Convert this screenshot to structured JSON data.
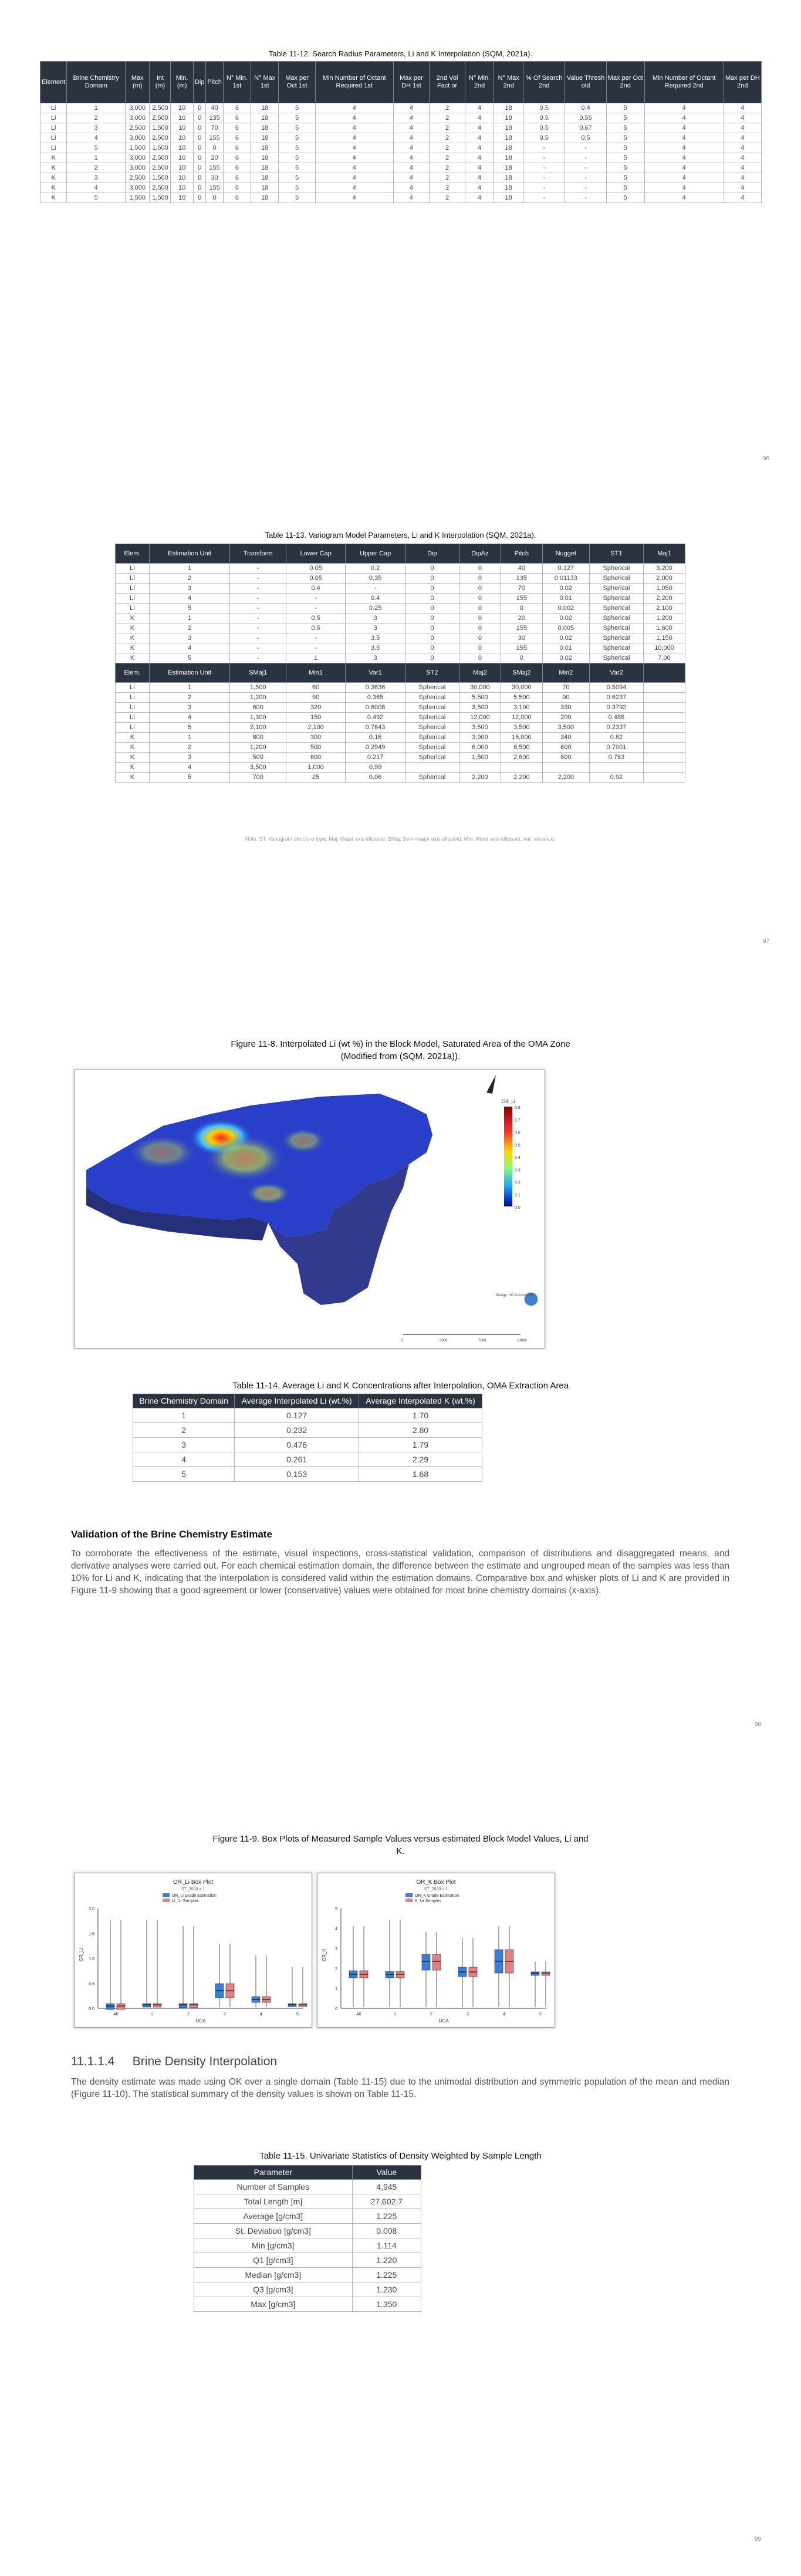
{
  "table12": {
    "caption": "Table 11-12. Search Radius Parameters, Li and K Interpolation (SQM, 2021a).",
    "headers": [
      "Element",
      "Brine Chemistry Domain",
      "Max (m)",
      "Int (m)",
      "Min. (m)",
      "Dip",
      "Pitch",
      "N° Min. 1st",
      "N° Max 1st",
      "Max per Oct 1st",
      "Min Number of Octant Required 1st",
      "Max per DH 1st",
      "2nd Vol Fact or",
      "N° Min. 2nd",
      "N° Max 2nd",
      "% Of Search 2nd",
      "Value Thresh old",
      "Max per Oct 2nd",
      "Min Number of Octant Required 2nd",
      "Max per DH 2nd"
    ],
    "rows": [
      [
        "Li",
        "1",
        "3,000",
        "2,500",
        "10",
        "0",
        "40",
        "6",
        "18",
        "5",
        "4",
        "4",
        "2",
        "4",
        "18",
        "0.5",
        "0.4",
        "5",
        "4",
        "4"
      ],
      [
        "Li",
        "2",
        "3,000",
        "2,500",
        "10",
        "0",
        "135",
        "6",
        "18",
        "5",
        "4",
        "4",
        "2",
        "4",
        "18",
        "0.5",
        "0.55",
        "5",
        "4",
        "4"
      ],
      [
        "Li",
        "3",
        "2,500",
        "1,500",
        "10",
        "0",
        "70",
        "6",
        "18",
        "5",
        "4",
        "4",
        "2",
        "4",
        "18",
        "0.5",
        "0.67",
        "5",
        "4",
        "4"
      ],
      [
        "Li",
        "4",
        "3,000",
        "2,500",
        "10",
        "0",
        "155",
        "6",
        "18",
        "5",
        "4",
        "4",
        "2",
        "4",
        "18",
        "0.5",
        "0.5",
        "5",
        "4",
        "4"
      ],
      [
        "Li",
        "5",
        "1,500",
        "1,500",
        "10",
        "0",
        "0",
        "6",
        "18",
        "5",
        "4",
        "4",
        "2",
        "4",
        "18",
        "-",
        "-",
        "5",
        "4",
        "4"
      ],
      [
        "K",
        "1",
        "3,000",
        "2,500",
        "10",
        "0",
        "20",
        "6",
        "18",
        "5",
        "4",
        "4",
        "2",
        "4",
        "18",
        "-",
        "-",
        "5",
        "4",
        "4"
      ],
      [
        "K",
        "2",
        "3,000",
        "2,500",
        "10",
        "0",
        "155",
        "6",
        "18",
        "5",
        "4",
        "4",
        "2",
        "4",
        "18",
        "-",
        "-",
        "5",
        "4",
        "4"
      ],
      [
        "K",
        "3",
        "2,500",
        "1,500",
        "10",
        "0",
        "30",
        "6",
        "18",
        "5",
        "4",
        "4",
        "2",
        "4",
        "18",
        "-",
        "-",
        "5",
        "4",
        "4"
      ],
      [
        "K",
        "4",
        "3,000",
        "2,500",
        "10",
        "0",
        "155",
        "6",
        "18",
        "5",
        "4",
        "4",
        "2",
        "4",
        "18",
        "-",
        "-",
        "5",
        "4",
        "4"
      ],
      [
        "K",
        "5",
        "1,500",
        "1,500",
        "10",
        "0",
        "0",
        "6",
        "18",
        "5",
        "4",
        "4",
        "2",
        "4",
        "18",
        "-",
        "-",
        "5",
        "4",
        "4"
      ]
    ]
  },
  "page96": "96",
  "table13": {
    "caption": "Table 11-13. Variogram Model Parameters, Li and K Interpolation (SQM, 2021a).",
    "headers1": [
      "Elem.",
      "Estimation Unit",
      "Transform",
      "Lower Cap",
      "Upper Cap",
      "Dip",
      "DipAz",
      "Pitch",
      "Nugget",
      "ST1",
      "Maj1"
    ],
    "rows1": [
      [
        "Li",
        "1",
        "-",
        "0.05",
        "0.2",
        "0",
        "0",
        "40",
        "0.127",
        "Spherical",
        "3,200"
      ],
      [
        "Li",
        "2",
        "-",
        "0.05",
        "0.35",
        "0",
        "0",
        "135",
        "0.01133",
        "Spherical",
        "2,000"
      ],
      [
        "Li",
        "3",
        "-",
        "0.4",
        "-",
        "0",
        "0",
        "70",
        "0.02",
        "Spherical",
        "1,050"
      ],
      [
        "Li",
        "4",
        "-",
        "-",
        "0.4",
        "0",
        "0",
        "155",
        "0.01",
        "Spherical",
        "2,200"
      ],
      [
        "Li",
        "5",
        "-",
        "-",
        "0.25",
        "0",
        "0",
        "0",
        "0.002",
        "Spherical",
        "2,100"
      ],
      [
        "K",
        "1",
        "-",
        "0.5",
        "3",
        "0",
        "0",
        "20",
        "0.02",
        "Spherical",
        "1,200"
      ],
      [
        "K",
        "2",
        "-",
        "0.5",
        "3",
        "0",
        "0",
        "155",
        "0.005",
        "Spherical",
        "1,600"
      ],
      [
        "K",
        "3",
        "-",
        "-",
        "3.5",
        "0",
        "0",
        "30",
        "0.02",
        "Spherical",
        "1,150"
      ],
      [
        "K",
        "4",
        "-",
        "-",
        "3.5",
        "0",
        "0",
        "155",
        "0.01",
        "Spherical",
        "10,000"
      ],
      [
        "K",
        "5",
        "-",
        "1",
        "3",
        "0",
        "0",
        "0",
        "0.02",
        "Spherical",
        "7,00"
      ]
    ],
    "headers2": [
      "Elem.",
      "Estimation Unit",
      "SMaj1",
      "Min1",
      "Var1",
      "ST2",
      "Maj2",
      "SMaj2",
      "Min2",
      "Var2",
      ""
    ],
    "rows2": [
      [
        "Li",
        "1",
        "1,500",
        "60",
        "0.3636",
        "Spherical",
        "30,000",
        "30,000",
        "70",
        "0.5094",
        ""
      ],
      [
        "Li",
        "2",
        "1,200",
        "90",
        "0.365",
        "Spherical",
        "5,500",
        "5,500",
        "90",
        "0.6237",
        ""
      ],
      [
        "Li",
        "3",
        "600",
        "320",
        "0.6008",
        "Spherical",
        "3,500",
        "3,100",
        "330",
        "0.3792",
        ""
      ],
      [
        "Li",
        "4",
        "1,300",
        "150",
        "0.492",
        "Spherical",
        "12,000",
        "12,000",
        "200",
        "0.488",
        ""
      ],
      [
        "Li",
        "5",
        "2,100",
        "2,100",
        "0.7643",
        "Spherical",
        "3,500",
        "3,500",
        "3,500",
        "0.2337",
        ""
      ],
      [
        "K",
        "1",
        "800",
        "300",
        "0.16",
        "Spherical",
        "3,900",
        "15,000",
        "340",
        "0.82",
        ""
      ],
      [
        "K",
        "2",
        "1,200",
        "500",
        "0.2949",
        "Spherical",
        "6,000",
        "8,500",
        "600",
        "0.7001",
        ""
      ],
      [
        "K",
        "3",
        "500",
        "600",
        "0.217",
        "Spherical",
        "1,600",
        "2,600",
        "600",
        "0.763",
        ""
      ],
      [
        "K",
        "4",
        "3,500",
        "1,000",
        "0.99",
        "",
        "",
        "",
        "",
        "",
        ""
      ],
      [
        "K",
        "5",
        "700",
        "25",
        "0.06",
        "Spherical",
        "2,200",
        "2,200",
        "2,200",
        "0.92",
        ""
      ]
    ],
    "note": "Note: ST: Variogram structure type, Maj: Major axis ellipsoid, SMaj: Semi-major axis ellipsoid, Min: Minor axis ellipsoid, Var: variance."
  },
  "page97": "97",
  "figure8": {
    "caption_line1": "Figure 11-8. Interpolated Li (wt %) in the Block Model, Saturated Area of the OMA Zone",
    "caption_line2": "(Modified from (SQM, 2021a)).",
    "legend_title": "OR_Li",
    "legend_values": [
      "0.8",
      "0.7",
      "0.6",
      "0.5",
      "0.4",
      "0.3",
      "0.2",
      "0.1",
      "0.0"
    ],
    "logo_text": "Plunge +00 Azimuth 311",
    "scale_labels": [
      "0",
      "3000",
      "7000",
      "13000"
    ]
  },
  "table14": {
    "caption": "Table 11-14. Average Li and K Concentrations after Interpolation, OMA Extraction Area",
    "headers": [
      "Brine Chemistry Domain",
      "Average Interpolated Li (wt.%)",
      "Average Interpolated K (wt.%)"
    ],
    "rows": [
      [
        "1",
        "0.127",
        "1.70"
      ],
      [
        "2",
        "0.232",
        "2.80"
      ],
      [
        "3",
        "0.476",
        "1.79"
      ],
      [
        "4",
        "0.261",
        "2.29"
      ],
      [
        "5",
        "0.153",
        "1.68"
      ]
    ]
  },
  "validation": {
    "heading": "Validation of the Brine Chemistry Estimate",
    "paragraph": "To corroborate the effectiveness of the estimate, visual inspections, cross-statistical validation, comparison of distributions and disaggregated means, and derivative analyses were carried out. For each chemical estimation domain, the difference between the estimate and ungrouped mean of the samples was less than 10% for Li and K, indicating that the interpolation is considered valid within the estimation domains. Comparative box and whisker plots of Li and K are provided in Figure 11-9 showing that a good agreement or lower (conservative) values were obtained for most brine chemistry domains (x-axis)."
  },
  "page98": "98",
  "figure9": {
    "caption_line1": "Figure 11-9. Box Plots of Measured Sample Values versus estimated Block Model Values, Li and",
    "caption_line2": "K.",
    "left_title": "OR_Li Box Plot",
    "left_sub": "ST_2020 > 1",
    "left_legend": [
      "OR_Li Grade Estimation",
      "Li_Ur Samples"
    ],
    "left_ylabel": "OR_Li",
    "left_xlabel": "UGA",
    "right_title": "OR_K Box Plot",
    "right_sub": "ST_2020 > 1",
    "right_legend": [
      "OR_K Grade Estimation",
      "K_Ur Samples"
    ],
    "right_ylabel": "OR_K",
    "right_xlabel": "UGA",
    "x_ticks": [
      "All",
      "1",
      "2",
      "3",
      "4",
      "5"
    ],
    "left_y_ticks": [
      "2.0",
      "1.5",
      "1.0",
      "0.5",
      "0.0"
    ],
    "right_y_ticks": [
      "5",
      "4",
      "3",
      "2",
      "1",
      "0"
    ]
  },
  "density": {
    "number": "11.1.1.4",
    "title": "Brine Density Interpolation",
    "paragraph": "The density estimate was made using OK over a single domain (Table 11-15) due to the unimodal distribution and symmetric population of the mean and median (Figure 11-10). The statistical summary of the density values is shown on Table 11-15."
  },
  "table15": {
    "caption": "Table 11-15. Univariate Statistics of Density Weighted by Sample Length",
    "headers": [
      "Parameter",
      "Value"
    ],
    "rows": [
      [
        "Number of Samples",
        "4,945"
      ],
      [
        "Total Length [m]",
        "27,602.7"
      ],
      [
        "Average [g/cm3]",
        "1.225"
      ],
      [
        "St. Deviation [g/cm3]",
        "0.008"
      ],
      [
        "Min [g/cm3]",
        "1.114"
      ],
      [
        "Q1 [g/cm3]",
        "1.220"
      ],
      [
        "Median [g/cm3]",
        "1.225"
      ],
      [
        "Q3 [g/cm3]",
        "1.230"
      ],
      [
        "Max [g/cm3]",
        "1.350"
      ]
    ]
  },
  "page99": "99",
  "colors": {
    "header_bg": "#2b3340",
    "border": "#b5b5b5",
    "blue_box": "#3b7dd8",
    "red_box": "#e08080"
  }
}
